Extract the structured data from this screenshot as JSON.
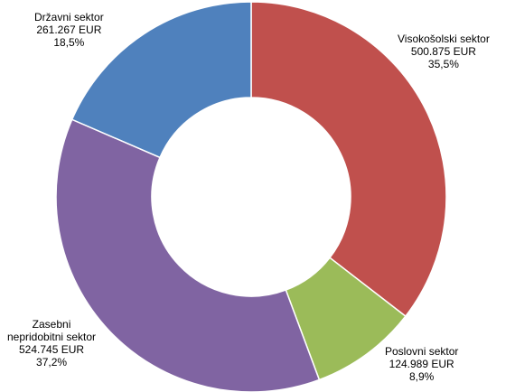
{
  "chart_data": {
    "type": "pie",
    "subtype": "donut",
    "slices": [
      {
        "name": "Visokošolski sektor",
        "value_text": "500.875 EUR",
        "value": 500875,
        "percent_text": "35,5%",
        "percent": 35.5,
        "color": "#c0504d"
      },
      {
        "name": "Poslovni sektor",
        "value_text": "124.989 EUR",
        "value": 124989,
        "percent_text": "8,9%",
        "percent": 8.9,
        "color": "#9bbb59"
      },
      {
        "name": "Zasebni neprídobitni sektor",
        "name_lines": [
          "Zasebni",
          "nepridobitni sektor"
        ],
        "value_text": "524.745 EUR",
        "value": 524745,
        "percent_text": "37,2%",
        "percent": 37.2,
        "color": "#8064a2"
      },
      {
        "name": "Državni sektor",
        "value_text": "261.267 EUR",
        "value": 261267,
        "percent_text": "18,5%",
        "percent": 18.5,
        "color": "#4f81bd"
      }
    ],
    "legend": "none",
    "start_angle_deg": 0,
    "direction": "clockwise"
  }
}
